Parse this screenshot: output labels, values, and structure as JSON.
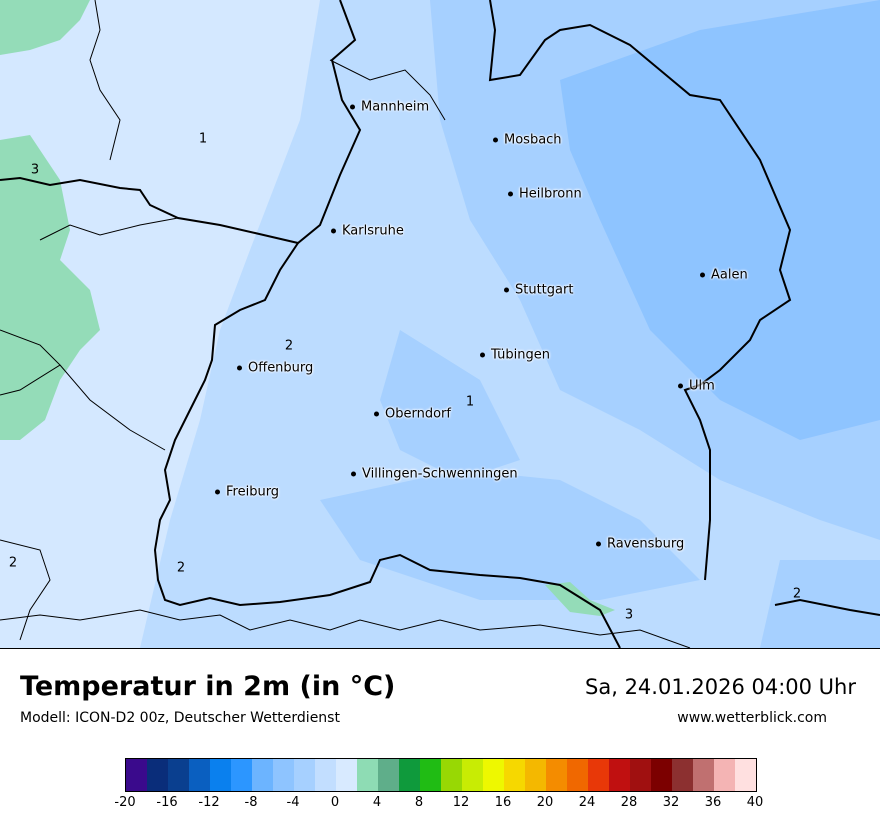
{
  "map": {
    "cities": [
      {
        "name": "Mannheim"
      },
      {
        "name": "Mosbach"
      },
      {
        "name": "Heilbronn"
      },
      {
        "name": "Karlsruhe"
      },
      {
        "name": "Aalen"
      },
      {
        "name": "Stuttgart"
      },
      {
        "name": "Tübingen"
      },
      {
        "name": "Offenburg"
      },
      {
        "name": "Ulm"
      },
      {
        "name": "Oberndorf"
      },
      {
        "name": "Villingen-Schwenningen"
      },
      {
        "name": "Freiburg"
      },
      {
        "name": "Ravensburg"
      }
    ],
    "contour_labels": [
      "1",
      "3",
      "2",
      "1",
      "2",
      "2",
      "3",
      "2"
    ],
    "colors": {
      "temp_1_2": "#bcdcff",
      "temp_0_1": "#d4e8ff",
      "temp_minus1_0": "#a6d0ff",
      "temp_minus2": "#8ec4ff",
      "temp_2_4": "#94dcb8"
    }
  },
  "footer": {
    "title": "Temperatur in 2m (in °C)",
    "model": "Modell: ICON-D2 00z, Deutscher Wetterdienst",
    "datetime": "Sa, 24.01.2026 04:00 Uhr",
    "website": "www.wetterblick.com"
  },
  "legend": {
    "colors": [
      "#3a0a8c",
      "#0a2d7a",
      "#0a3f8f",
      "#0a5fc0",
      "#0a80ee",
      "#2c96ff",
      "#6cb4ff",
      "#8ec4ff",
      "#a6d0ff",
      "#c2deff",
      "#d8eaff",
      "#8edcb4",
      "#5fae8a",
      "#0f9a3c",
      "#20bc14",
      "#98d804",
      "#c8ec04",
      "#eef800",
      "#f6d800",
      "#f4b800",
      "#f48c00",
      "#f06800",
      "#e83808",
      "#c01010",
      "#a01010",
      "#7c0000",
      "#8c3030",
      "#c07070",
      "#f4b4b4",
      "#ffe0e0"
    ],
    "ticks": [
      "-20",
      "-16",
      "-12",
      "-8",
      "-4",
      "0",
      "4",
      "8",
      "12",
      "16",
      "20",
      "24",
      "28",
      "32",
      "36",
      "40"
    ]
  }
}
